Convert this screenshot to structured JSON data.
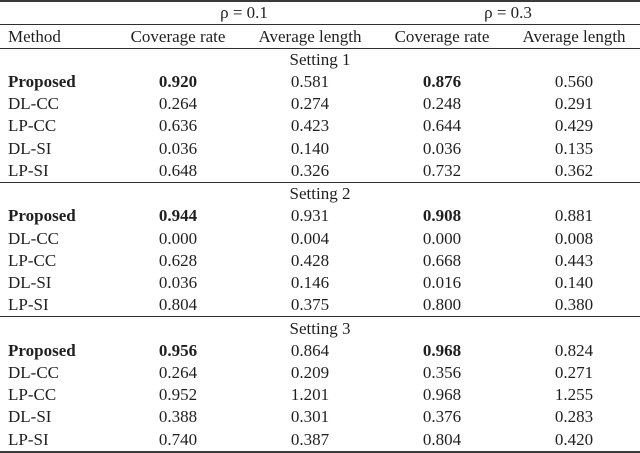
{
  "table": {
    "group_headers": {
      "g1": "ρ = 0.1",
      "g2": "ρ = 0.3"
    },
    "column_headers": {
      "method": "Method",
      "cov1": "Coverage rate",
      "len1": "Average length",
      "cov2": "Coverage rate",
      "len2": "Average length"
    },
    "sections": [
      {
        "title": "Setting 1",
        "rows": [
          {
            "method": "Proposed",
            "v": [
              "0.920",
              "0.581",
              "0.876",
              "0.560"
            ]
          },
          {
            "method": "DL-CC",
            "v": [
              "0.264",
              "0.274",
              "0.248",
              "0.291"
            ]
          },
          {
            "method": "LP-CC",
            "v": [
              "0.636",
              "0.423",
              "0.644",
              "0.429"
            ]
          },
          {
            "method": "DL-SI",
            "v": [
              "0.036",
              "0.140",
              "0.036",
              "0.135"
            ]
          },
          {
            "method": "LP-SI",
            "v": [
              "0.648",
              "0.326",
              "0.732",
              "0.362"
            ]
          }
        ]
      },
      {
        "title": "Setting 2",
        "rows": [
          {
            "method": "Proposed",
            "v": [
              "0.944",
              "0.931",
              "0.908",
              "0.881"
            ]
          },
          {
            "method": "DL-CC",
            "v": [
              "0.000",
              "0.004",
              "0.000",
              "0.008"
            ]
          },
          {
            "method": "LP-CC",
            "v": [
              "0.628",
              "0.428",
              "0.668",
              "0.443"
            ]
          },
          {
            "method": "DL-SI",
            "v": [
              "0.036",
              "0.146",
              "0.016",
              "0.140"
            ]
          },
          {
            "method": "LP-SI",
            "v": [
              "0.804",
              "0.375",
              "0.800",
              "0.380"
            ]
          }
        ]
      },
      {
        "title": "Setting 3",
        "rows": [
          {
            "method": "Proposed",
            "v": [
              "0.956",
              "0.864",
              "0.968",
              "0.824"
            ]
          },
          {
            "method": "DL-CC",
            "v": [
              "0.264",
              "0.209",
              "0.356",
              "0.271"
            ]
          },
          {
            "method": "LP-CC",
            "v": [
              "0.952",
              "1.201",
              "0.968",
              "1.255"
            ]
          },
          {
            "method": "DL-SI",
            "v": [
              "0.388",
              "0.301",
              "0.376",
              "0.283"
            ]
          },
          {
            "method": "LP-SI",
            "v": [
              "0.740",
              "0.387",
              "0.804",
              "0.420"
            ]
          }
        ]
      }
    ],
    "colors": {
      "text": "#1f1f1f",
      "rule": "#2e2e2e",
      "background": "#ffffff"
    }
  }
}
